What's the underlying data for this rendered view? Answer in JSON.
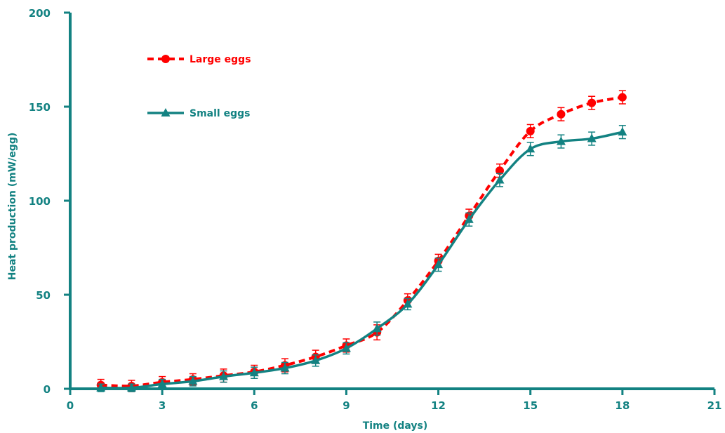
{
  "chart_data": {
    "type": "line",
    "title": "",
    "xlabel": "Time (days)",
    "ylabel": "Heat production (mW/egg)",
    "xlim": [
      0,
      21
    ],
    "ylim": [
      0,
      200
    ],
    "x_ticks": [
      0,
      3,
      6,
      9,
      12,
      15,
      18,
      21
    ],
    "y_ticks": [
      0,
      50,
      100,
      150,
      200
    ],
    "grid": false,
    "legend_position": "top-left",
    "x": [
      1,
      2,
      3,
      4,
      5,
      6,
      7,
      8,
      9,
      10,
      11,
      12,
      13,
      14,
      15,
      16,
      17,
      18
    ],
    "series": [
      {
        "name": "Large eggs",
        "color": "#ff0000",
        "line_style": "dashed",
        "marker": "circle",
        "values": [
          2,
          1.5,
          3.5,
          5,
          7,
          9,
          12.5,
          17,
          23,
          30,
          47,
          68,
          92,
          116,
          137,
          146,
          152,
          155
        ],
        "errors": [
          3,
          3,
          3,
          3,
          3.5,
          3.5,
          3.5,
          3.5,
          3.5,
          4,
          3.5,
          3.5,
          3.5,
          3.5,
          3.5,
          3.5,
          3.5,
          3.5
        ]
      },
      {
        "name": "Small eggs",
        "color": "#138282",
        "line_style": "solid",
        "marker": "triangle",
        "values": [
          0.5,
          0.5,
          2.5,
          4,
          6.5,
          8.5,
          11,
          15,
          21.5,
          32,
          45,
          66,
          90,
          111,
          127.5,
          131.5,
          133,
          136.5
        ],
        "errors": [
          2,
          2,
          2.5,
          2.5,
          3,
          3,
          3,
          3,
          3,
          3.5,
          3,
          3.5,
          3.5,
          3.5,
          3.5,
          3.5,
          3.5,
          3.5
        ]
      }
    ]
  }
}
